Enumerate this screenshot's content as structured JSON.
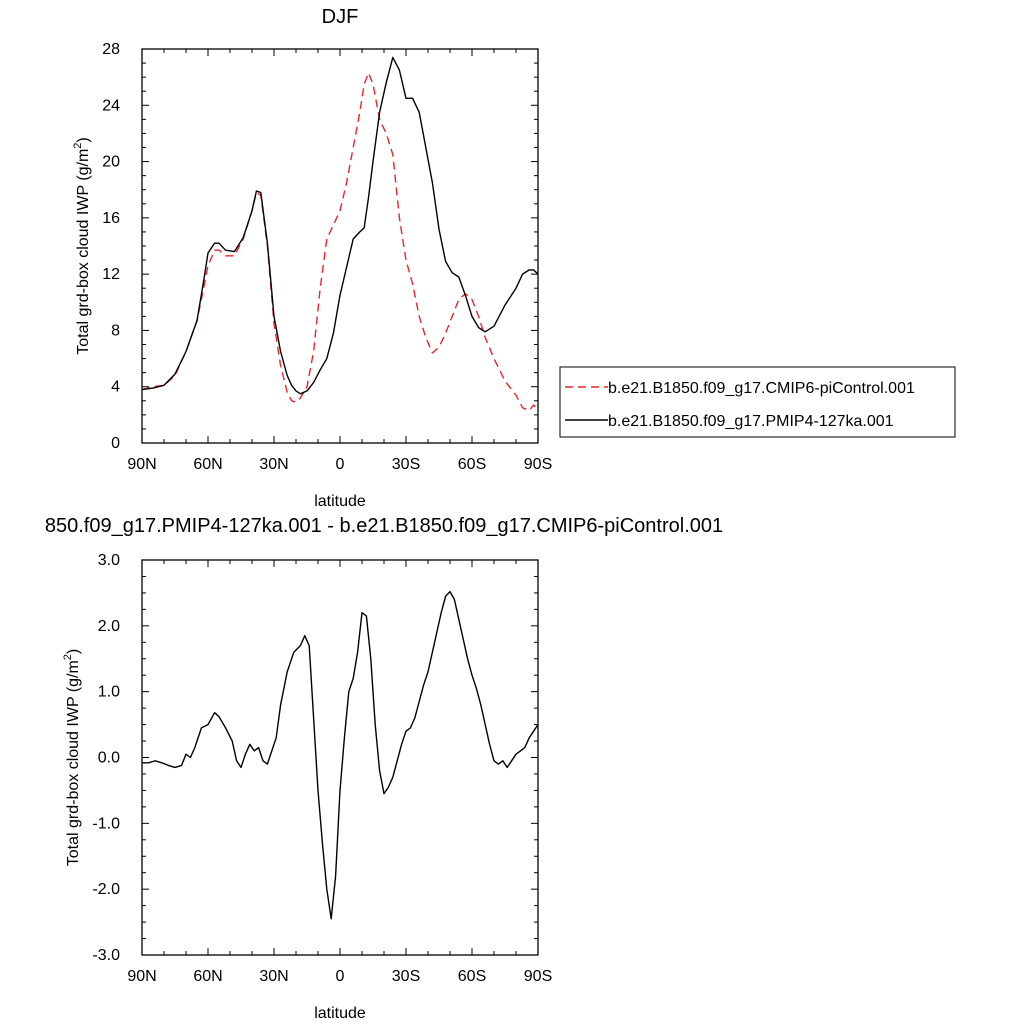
{
  "chart_data": [
    {
      "type": "line",
      "title": "DJF",
      "xlabel": "latitude",
      "ylabel": "Total grd-box cloud IWP (g/m²)",
      "xlim": [
        90,
        -90
      ],
      "ylim": [
        0,
        28
      ],
      "x_ticks": [
        {
          "value": 90,
          "label": "90N"
        },
        {
          "value": 60,
          "label": "60N"
        },
        {
          "value": 30,
          "label": "30N"
        },
        {
          "value": 0,
          "label": "0"
        },
        {
          "value": -30,
          "label": "30S"
        },
        {
          "value": -60,
          "label": "60S"
        },
        {
          "value": -90,
          "label": "90S"
        }
      ],
      "y_ticks": [
        {
          "value": 0,
          "label": "0"
        },
        {
          "value": 4,
          "label": "4"
        },
        {
          "value": 8,
          "label": "8"
        },
        {
          "value": 12,
          "label": "12"
        },
        {
          "value": 16,
          "label": "16"
        },
        {
          "value": 20,
          "label": "20"
        },
        {
          "value": 24,
          "label": "24"
        },
        {
          "value": 28,
          "label": "28"
        }
      ],
      "legend_position": "right",
      "series": [
        {
          "name": "b.e21.B1850.f09_g17.CMIP6-piControl.001",
          "color": "#e8262b",
          "dash": true,
          "x": [
            90,
            85,
            80,
            75,
            70,
            65,
            62,
            60,
            57,
            55,
            52,
            48,
            44,
            40,
            38,
            36,
            33,
            30,
            27,
            24,
            22,
            20,
            18,
            15,
            12,
            9,
            6,
            3,
            0,
            -3,
            -6,
            -9,
            -11,
            -13,
            -15,
            -18,
            -21,
            -24,
            -27,
            -30,
            -33,
            -36,
            -39,
            -42,
            -45,
            -48,
            -51,
            -54,
            -57,
            -60,
            -63,
            -66,
            -70,
            -75,
            -80,
            -83,
            -86,
            -88,
            -90
          ],
          "y": [
            3.8,
            4.0,
            4.1,
            4.8,
            6.5,
            8.7,
            11.0,
            12.6,
            13.7,
            13.7,
            13.3,
            13.3,
            14.5,
            16.5,
            17.8,
            17.6,
            14.0,
            8.5,
            5.5,
            3.6,
            3.0,
            2.9,
            3.2,
            4.0,
            6.5,
            11.0,
            14.5,
            15.5,
            16.5,
            18.5,
            21.0,
            23.5,
            25.5,
            26.3,
            25.5,
            23.0,
            22.0,
            20.5,
            16.0,
            13.0,
            11.3,
            9.0,
            7.5,
            6.4,
            6.8,
            7.8,
            9.0,
            10.2,
            10.6,
            10.2,
            9.0,
            7.5,
            6.0,
            4.4,
            3.4,
            2.5,
            2.3,
            2.7,
            2.4
          ]
        },
        {
          "name": "b.e21.B1850.f09_g17.PMIP4-127ka.001",
          "color": "#000000",
          "dash": false,
          "x": [
            90,
            85,
            80,
            75,
            70,
            65,
            62,
            60,
            57,
            55,
            52,
            48,
            44,
            40,
            38,
            36,
            33,
            30,
            27,
            24,
            22,
            20,
            18,
            15,
            12,
            9,
            6,
            3,
            0,
            -3,
            -6,
            -9,
            -11,
            -13,
            -15,
            -18,
            -21,
            -24,
            -27,
            -30,
            -33,
            -36,
            -39,
            -42,
            -45,
            -48,
            -51,
            -54,
            -57,
            -60,
            -63,
            -66,
            -70,
            -75,
            -80,
            -83,
            -86,
            -88,
            -90
          ],
          "y": [
            3.8,
            3.9,
            4.1,
            4.9,
            6.5,
            8.7,
            11.5,
            13.5,
            14.2,
            14.2,
            13.7,
            13.6,
            14.6,
            16.5,
            17.9,
            17.8,
            14.2,
            9.0,
            6.5,
            4.8,
            4.1,
            3.7,
            3.5,
            3.7,
            4.3,
            5.2,
            6.0,
            7.8,
            10.5,
            12.5,
            14.5,
            15.0,
            15.3,
            17.5,
            20.0,
            23.5,
            25.6,
            27.4,
            26.5,
            24.5,
            24.5,
            23.5,
            21.0,
            18.5,
            15.2,
            12.9,
            12.1,
            11.8,
            10.5,
            9.0,
            8.2,
            7.9,
            8.3,
            9.8,
            11.0,
            12.0,
            12.3,
            12.3,
            12.0
          ]
        }
      ]
    },
    {
      "type": "line",
      "title": "850.f09_g17.PMIP4-127ka.001 - b.e21.B1850.f09_g17.CMIP6-piControl.001",
      "xlabel": "latitude",
      "ylabel": "Total grd-box cloud IWP (g/m²)",
      "xlim": [
        90,
        -90
      ],
      "ylim": [
        -3.0,
        3.0
      ],
      "x_ticks": [
        {
          "value": 90,
          "label": "90N"
        },
        {
          "value": 60,
          "label": "60N"
        },
        {
          "value": 30,
          "label": "30N"
        },
        {
          "value": 0,
          "label": "0"
        },
        {
          "value": -30,
          "label": "30S"
        },
        {
          "value": -60,
          "label": "60S"
        },
        {
          "value": -90,
          "label": "90S"
        }
      ],
      "y_ticks": [
        {
          "value": -3,
          "label": "-3.0"
        },
        {
          "value": -2,
          "label": "-2.0"
        },
        {
          "value": -1,
          "label": "-1.0"
        },
        {
          "value": 0,
          "label": "0.0"
        },
        {
          "value": 1,
          "label": "1.0"
        },
        {
          "value": 2,
          "label": "2.0"
        },
        {
          "value": 3,
          "label": "3.0"
        }
      ],
      "series": [
        {
          "color": "#000000",
          "dash": false,
          "x": [
            90,
            87,
            84,
            81,
            78,
            75,
            72,
            70,
            68,
            66,
            63,
            60,
            57,
            55,
            52,
            49,
            47,
            45,
            43,
            41,
            39,
            37,
            35,
            33,
            31,
            29,
            27,
            24,
            21,
            18,
            16,
            14,
            12,
            10,
            8,
            6,
            4,
            2,
            0,
            -2,
            -4,
            -6,
            -8,
            -10,
            -12,
            -14,
            -16,
            -18,
            -20,
            -22,
            -24,
            -26,
            -28,
            -30,
            -32,
            -34,
            -36,
            -38,
            -40,
            -42,
            -44,
            -46,
            -48,
            -50,
            -52,
            -54,
            -56,
            -58,
            -60,
            -62,
            -64,
            -66,
            -68,
            -70,
            -72,
            -74,
            -76,
            -78,
            -80,
            -82,
            -84,
            -86,
            -88,
            -90
          ],
          "y": [
            -0.08,
            -0.08,
            -0.05,
            -0.08,
            -0.12,
            -0.15,
            -0.12,
            0.05,
            0.0,
            0.15,
            0.45,
            0.5,
            0.68,
            0.62,
            0.45,
            0.25,
            -0.05,
            -0.15,
            0.05,
            0.2,
            0.1,
            0.15,
            -0.05,
            -0.1,
            0.1,
            0.3,
            0.8,
            1.3,
            1.6,
            1.7,
            1.85,
            1.7,
            0.6,
            -0.5,
            -1.3,
            -2.0,
            -2.45,
            -1.8,
            -0.5,
            0.3,
            1.0,
            1.2,
            1.6,
            2.2,
            2.15,
            1.5,
            0.5,
            -0.2,
            -0.55,
            -0.45,
            -0.3,
            -0.05,
            0.2,
            0.4,
            0.45,
            0.6,
            0.85,
            1.1,
            1.3,
            1.6,
            1.9,
            2.2,
            2.45,
            2.52,
            2.4,
            2.1,
            1.8,
            1.5,
            1.25,
            1.05,
            0.8,
            0.5,
            0.2,
            -0.05,
            -0.1,
            -0.05,
            -0.15,
            -0.05,
            0.05,
            0.1,
            0.15,
            0.3,
            0.4,
            0.5
          ]
        }
      ]
    }
  ]
}
